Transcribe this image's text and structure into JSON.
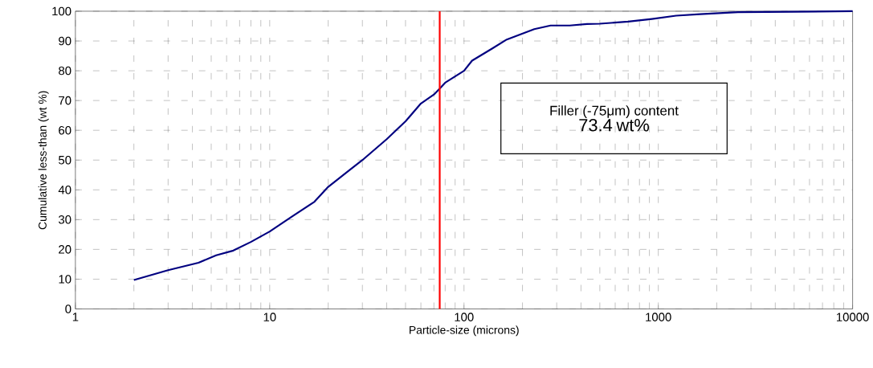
{
  "chart_data": {
    "type": "line",
    "xlabel": "Particle-size (microns)",
    "ylabel": "Cumulative less-than (wt %)",
    "log": "x",
    "grid": true,
    "marker": "none",
    "line_style": "solid",
    "xlim": [
      1,
      10000
    ],
    "xticks": [
      1,
      10,
      100,
      1000,
      10000
    ],
    "ylim": [
      0,
      100
    ],
    "yticks": [
      0,
      10,
      20,
      30,
      40,
      50,
      60,
      70,
      80,
      90,
      100
    ],
    "series": [
      {
        "color": "#000080",
        "x": [
          2,
          3,
          4.3,
          5.3,
          6.5,
          8,
          10,
          13,
          17,
          20,
          25,
          30,
          40,
          50,
          60,
          70,
          75,
          80,
          100,
          110,
          140,
          166,
          230,
          279,
          350,
          430,
          500,
          700,
          927,
          1235,
          1640,
          2570,
          5000,
          10000
        ],
        "values": [
          9.7,
          13,
          15.5,
          18,
          19.6,
          22.5,
          26,
          31,
          36,
          41,
          46,
          50,
          57,
          63,
          69,
          72,
          74,
          76,
          80,
          83.4,
          87.5,
          90.5,
          94,
          95.2,
          95.2,
          95.7,
          95.8,
          96.5,
          97.4,
          98.5,
          99,
          99.7,
          99.8,
          100
        ]
      }
    ],
    "ref_lines": [
      {
        "axis": "x",
        "value": 75,
        "color": "#ff0000"
      }
    ],
    "annotations": [
      "Filler (-75μm) content",
      "73.4 wt%"
    ]
  }
}
